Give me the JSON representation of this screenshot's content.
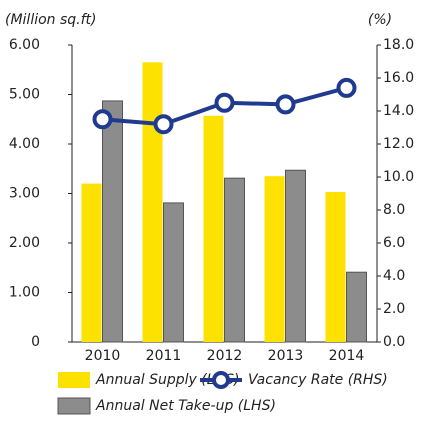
{
  "chart_data": {
    "type": "bar_line",
    "y_label": "(Million sq.ft)",
    "y2_label": "(%)",
    "categories": [
      "2010",
      "2011",
      "2012",
      "2013",
      "2014"
    ],
    "series": [
      {
        "name": "Annual Supply (LHS)",
        "color": "#fde100",
        "type": "bar",
        "values": [
          3.2,
          5.65,
          4.57,
          3.35,
          3.03
        ]
      },
      {
        "name": "Annual Net Take-up (LHS)",
        "color": "#8c8c8c",
        "type": "bar",
        "values": [
          4.87,
          2.81,
          3.31,
          3.47,
          1.41
        ]
      },
      {
        "name": "Vacancy Rate (RHS)",
        "color": "#1f3a8f",
        "type": "line",
        "axis": "y2",
        "values": [
          13.5,
          13.2,
          14.5,
          14.4,
          15.4
        ]
      }
    ],
    "ylim": [
      0,
      6
    ],
    "yticks": [
      0,
      {
        "value": 1,
        "label": "1.00"
      },
      {
        "value": 2,
        "label": "2.00"
      },
      {
        "value": 3,
        "label": "3.00"
      },
      {
        "value": 4,
        "label": "4.00"
      },
      {
        "value": 5,
        "label": "5.00"
      },
      {
        "value": 6,
        "label": "6.00"
      }
    ],
    "y2lim": [
      0,
      18
    ],
    "y2ticks": [
      {
        "value": 0,
        "label": "0.0"
      },
      {
        "value": 2,
        "label": "2.0"
      },
      {
        "value": 4,
        "label": "4.0"
      },
      {
        "value": 6,
        "label": "6.0"
      },
      {
        "value": 8,
        "label": "8.0"
      },
      {
        "value": 10,
        "label": "10.0"
      },
      {
        "value": 12,
        "label": "12.0"
      },
      {
        "value": 14,
        "label": "14.0"
      },
      {
        "value": 16,
        "label": "16.0"
      },
      {
        "value": 18,
        "label": "18.0"
      }
    ],
    "grid": false
  }
}
